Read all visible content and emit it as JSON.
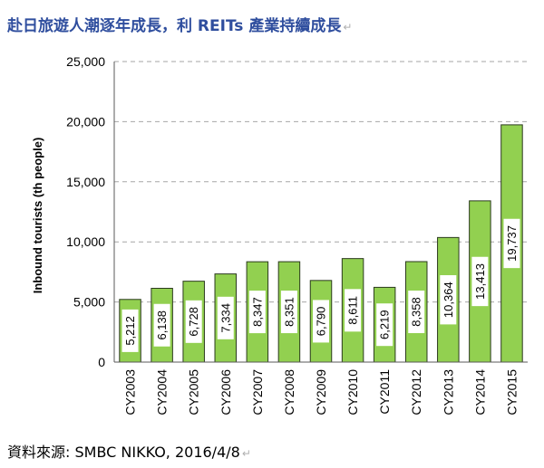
{
  "header": {
    "title": "赴日旅遊人潮逐年成長，利 REITs 產業持續成長",
    "edit_mark": "↵"
  },
  "footer": {
    "source": "資料來源: SMBC NIKKO, 2016/4/8",
    "edit_mark": "↵"
  },
  "colors": {
    "bar_fill": "#92d050",
    "bar_stroke": "#2b3a1d",
    "grid": "#a6a6a6",
    "title": "#2f4e9e"
  },
  "chart_data": {
    "type": "bar",
    "title": "",
    "xlabel": "",
    "ylabel": "Inbound tourists (th people)",
    "categories": [
      "CY2003",
      "CY2004",
      "CY2005",
      "CY2006",
      "CY2007",
      "CY2008",
      "CY2009",
      "CY2010",
      "CY2011",
      "CY2012",
      "CY2013",
      "CY2014",
      "CY2015"
    ],
    "values": [
      5212,
      6138,
      6728,
      7334,
      8347,
      8351,
      6790,
      8611,
      6219,
      8358,
      10364,
      13413,
      19737
    ],
    "value_labels": [
      "5,212",
      "6,138",
      "6,728",
      "7,334",
      "8,347",
      "8,351",
      "6,790",
      "8,611",
      "6,219",
      "8,358",
      "10,364",
      "13,413",
      "19,737"
    ],
    "yticks": [
      "0",
      "5,000",
      "10,000",
      "15,000",
      "20,000",
      "25,000"
    ],
    "ylim": [
      0,
      25000
    ],
    "grid": true,
    "grid_style": "dashed"
  }
}
